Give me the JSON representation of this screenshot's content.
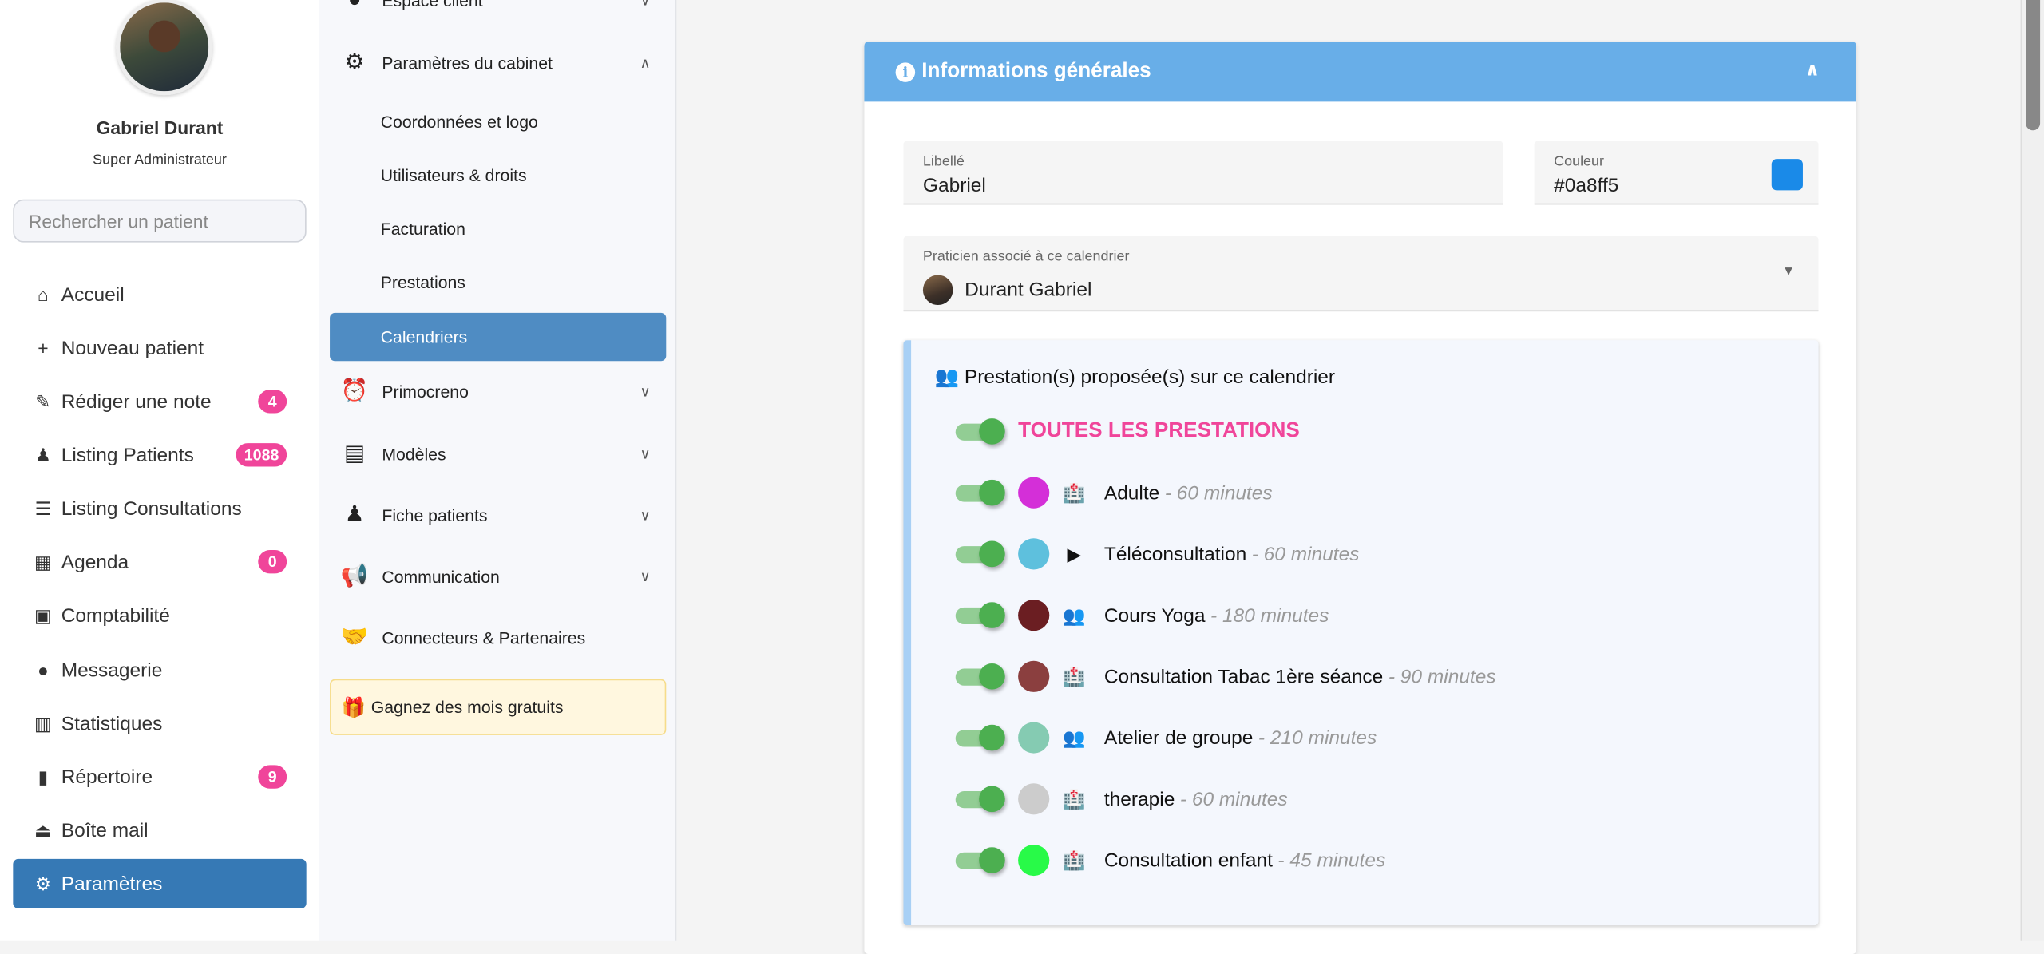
{
  "user": {
    "name": "Gabriel Durant",
    "role": "Super Administrateur"
  },
  "search": {
    "placeholder": "Rechercher un patient"
  },
  "main_menu": [
    {
      "label": "Accueil",
      "icon": "home-icon"
    },
    {
      "label": "Nouveau patient",
      "icon": "plus-icon"
    },
    {
      "label": "Rédiger une note",
      "icon": "pencil-icon",
      "badge": "4"
    },
    {
      "label": "Listing Patients",
      "icon": "patient-icon",
      "badge": "1088"
    },
    {
      "label": "Listing Consultations",
      "icon": "list-icon"
    },
    {
      "label": "Agenda",
      "icon": "calendar-icon",
      "badge": "0"
    },
    {
      "label": "Comptabilité",
      "icon": "calculator-icon"
    },
    {
      "label": "Messagerie",
      "icon": "chat-icon"
    },
    {
      "label": "Statistiques",
      "icon": "chart-icon"
    },
    {
      "label": "Répertoire",
      "icon": "address-book-icon",
      "badge": "9"
    },
    {
      "label": "Boîte mail",
      "icon": "inbox-icon"
    },
    {
      "label": "Paramètres",
      "icon": "gear-icon",
      "active": true
    }
  ],
  "settings_menu": {
    "espace_client": "Espace client",
    "parametres_cabinet": "Paramètres du cabinet",
    "sub": [
      "Coordonnées et logo",
      "Utilisateurs & droits",
      "Facturation",
      "Prestations",
      "Calendriers"
    ],
    "active_sub": "Calendriers",
    "primocreno": "Primocreno",
    "modeles": "Modèles",
    "fiche_patients": "Fiche patients",
    "communication": "Communication",
    "connecteurs": "Connecteurs & Partenaires",
    "gift": "Gagnez des mois gratuits"
  },
  "card": {
    "title": "Informations générales",
    "libelle_label": "Libellé",
    "libelle_value": "Gabriel",
    "couleur_label": "Couleur",
    "couleur_value": "#0a8ff5",
    "swatch_color": "#1a8ae8",
    "praticien_label": "Praticien associé à ce calendrier",
    "praticien_value": "Durant Gabriel"
  },
  "prestations": {
    "title": "Prestation(s) proposée(s) sur ce calendrier",
    "all_label": "TOUTES LES PRESTATIONS",
    "all_enabled": true,
    "items": [
      {
        "name": "Adulte",
        "duration": "- 60 minutes",
        "color": "#d42fd8",
        "type_icon": "clinic-icon",
        "enabled": true
      },
      {
        "name": "Téléconsultation",
        "duration": "- 60 minutes",
        "color": "#5ec0dd",
        "type_icon": "video-icon",
        "enabled": true
      },
      {
        "name": "Cours Yoga",
        "duration": "- 180 minutes",
        "color": "#6b1e22",
        "type_icon": "group-icon",
        "enabled": true
      },
      {
        "name": "Consultation Tabac 1ère séance",
        "duration": "- 90 minutes",
        "color": "#8b3f3f",
        "type_icon": "clinic-icon",
        "enabled": true
      },
      {
        "name": "Atelier de groupe",
        "duration": "- 210 minutes",
        "color": "#85cbb2",
        "type_icon": "group-icon",
        "enabled": true
      },
      {
        "name": "therapie",
        "duration": "- 60 minutes",
        "color": "#cccccc",
        "type_icon": "clinic-icon",
        "enabled": true
      },
      {
        "name": "Consultation enfant",
        "duration": "- 45 minutes",
        "color": "#28fa48",
        "type_icon": "clinic-icon",
        "enabled": true
      }
    ]
  }
}
